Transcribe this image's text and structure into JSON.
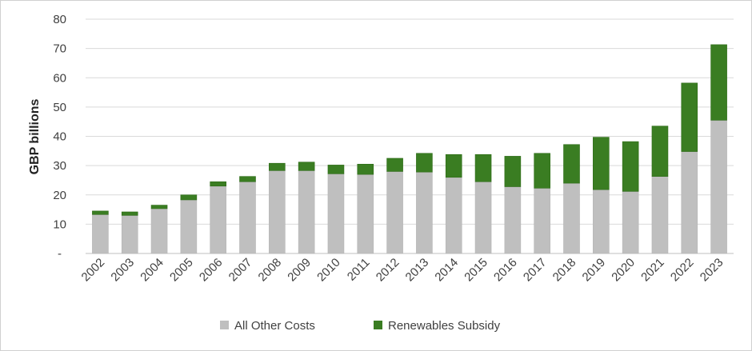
{
  "chart_data": {
    "type": "bar",
    "stacked": true,
    "title": "",
    "xlabel": "",
    "ylabel": "GBP billions",
    "ylim": [
      0,
      80
    ],
    "yticks": [
      "-",
      "10",
      "20",
      "30",
      "40",
      "50",
      "60",
      "70",
      "80"
    ],
    "grid": true,
    "legend_position": "bottom",
    "categories": [
      "2002",
      "2003",
      "2004",
      "2005",
      "2006",
      "2007",
      "2008",
      "2009",
      "2010",
      "2011",
      "2012",
      "2013",
      "2014",
      "2015",
      "2016",
      "2017",
      "2018",
      "2019",
      "2020",
      "2021",
      "2022",
      "2023"
    ],
    "series": [
      {
        "name": "All Other Costs",
        "color": "#bfbfbf",
        "values": [
          13.3,
          13.0,
          15.3,
          18.3,
          23.0,
          24.5,
          28.3,
          28.3,
          27.2,
          27.0,
          28.0,
          27.8,
          26.0,
          24.5,
          22.8,
          22.3,
          24.0,
          21.8,
          21.2,
          26.3,
          34.8,
          45.5
        ]
      },
      {
        "name": "Renewables Subsidy",
        "color": "#3a7d22",
        "values": [
          1.2,
          1.2,
          1.2,
          1.7,
          1.5,
          1.8,
          2.5,
          2.9,
          3.0,
          3.5,
          4.5,
          6.4,
          7.8,
          9.3,
          10.4,
          11.9,
          13.2,
          17.9,
          17.0,
          17.2,
          23.4,
          25.8
        ]
      }
    ]
  }
}
